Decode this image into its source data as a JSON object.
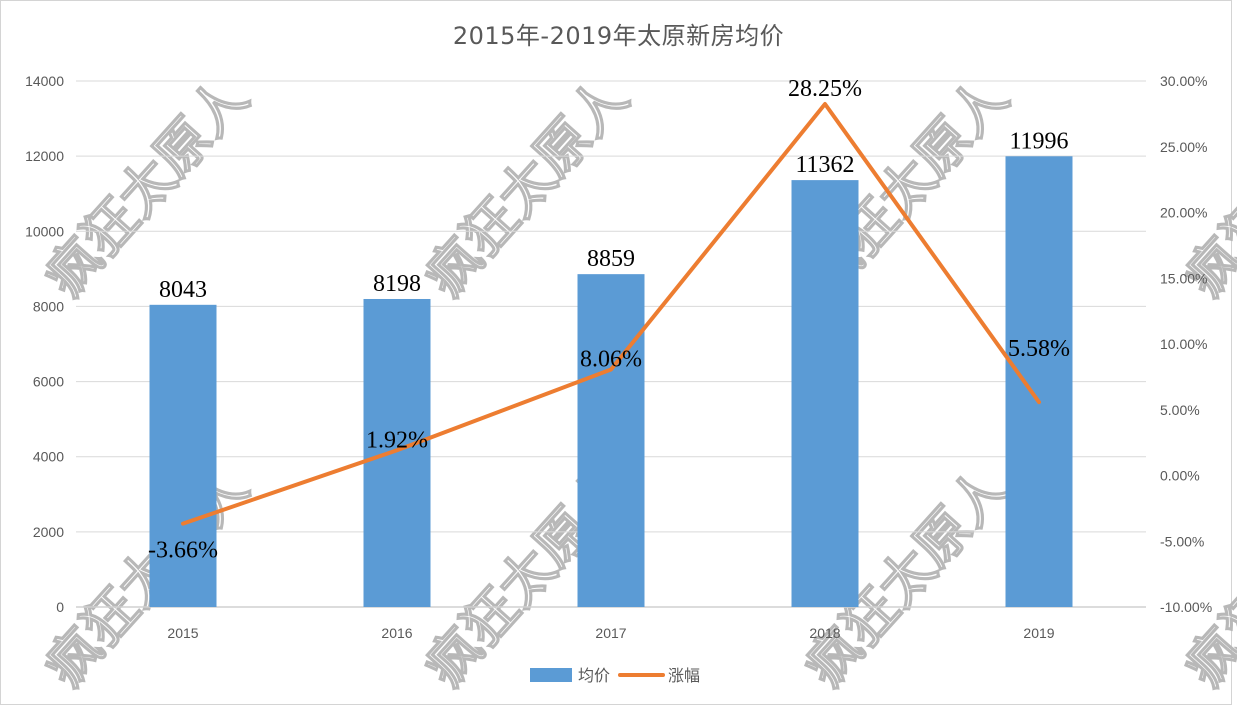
{
  "chart_data": {
    "type": "bar+line",
    "title": "2015年-2019年太原新房均价",
    "categories": [
      "2015",
      "2016",
      "2017",
      "2018",
      "2019"
    ],
    "series": [
      {
        "name": "均价",
        "type": "bar",
        "axis": "left",
        "color": "#5b9bd5",
        "values": [
          8043,
          8198,
          8859,
          11362,
          11996
        ],
        "labels": [
          "8043",
          "8198",
          "8859",
          "11362",
          "11996"
        ]
      },
      {
        "name": "涨幅",
        "type": "line",
        "axis": "right",
        "color": "#ed7d31",
        "values": [
          -3.66,
          1.92,
          8.06,
          28.25,
          5.58
        ],
        "labels": [
          "-3.66%",
          "1.92%",
          "8.06%",
          "28.25%",
          "5.58%"
        ]
      }
    ],
    "left_axis": {
      "min": 0,
      "max": 14000,
      "step": 2000,
      "ticks": [
        "0",
        "2000",
        "4000",
        "6000",
        "8000",
        "10000",
        "12000",
        "14000"
      ]
    },
    "right_axis": {
      "min": -10,
      "max": 30,
      "step": 5,
      "ticks": [
        "-10.00%",
        "-5.00%",
        "0.00%",
        "5.00%",
        "10.00%",
        "15.00%",
        "20.00%",
        "25.00%",
        "30.00%"
      ]
    },
    "grid": true,
    "legend_position": "bottom",
    "xlabel": "",
    "ylabel": ""
  },
  "watermark": "疯狂太原人"
}
